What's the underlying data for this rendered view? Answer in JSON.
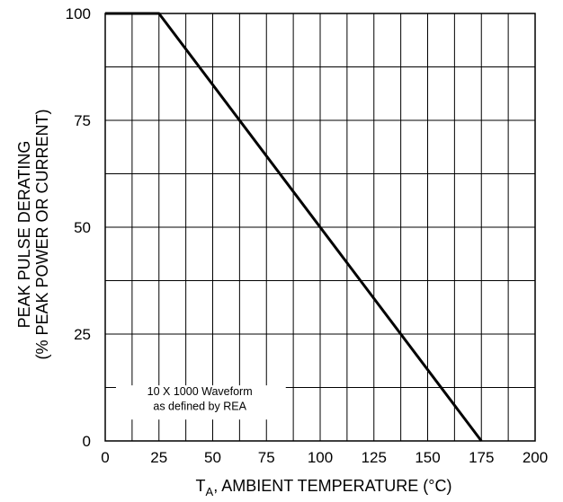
{
  "chart_data": {
    "type": "line",
    "title": "",
    "xlabel": {
      "main": "T",
      "subscript": "A",
      "rest": ", AMBIENT TEMPERATURE (°C)"
    },
    "ylabel": {
      "line1": "PEAK PULSE DERATING",
      "line2": "(% PEAK POWER OR CURRENT)"
    },
    "xlim": [
      0,
      200
    ],
    "ylim": [
      0,
      100
    ],
    "x_ticks": [
      0,
      25,
      50,
      75,
      100,
      125,
      150,
      175,
      200
    ],
    "y_ticks": [
      0,
      25,
      50,
      75,
      100
    ],
    "grid": true,
    "series": [
      {
        "x": [
          0,
          25,
          175
        ],
        "y": [
          100,
          100,
          0
        ]
      }
    ],
    "annotation": {
      "line1": "10 X 1000 Waveform",
      "line2": "as defined by REA"
    },
    "colors": {
      "line": "#000000",
      "grid": "#000000",
      "background": "#ffffff"
    }
  }
}
